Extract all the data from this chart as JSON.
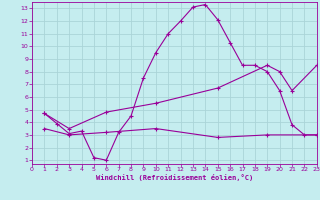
{
  "xlabel": "Windchill (Refroidissement éolien,°C)",
  "background_color": "#c5edef",
  "grid_color": "#aad4d8",
  "line_color": "#990099",
  "xlim": [
    0,
    23
  ],
  "ylim": [
    0.7,
    13.5
  ],
  "xticks": [
    0,
    1,
    2,
    3,
    4,
    5,
    6,
    7,
    8,
    9,
    10,
    11,
    12,
    13,
    14,
    15,
    16,
    17,
    18,
    19,
    20,
    21,
    22,
    23
  ],
  "yticks": [
    1,
    2,
    3,
    4,
    5,
    6,
    7,
    8,
    9,
    10,
    11,
    12,
    13
  ],
  "line1_x": [
    1,
    2,
    3,
    4,
    5,
    6,
    7,
    8,
    9,
    10,
    11,
    12,
    13,
    14,
    15,
    16,
    17,
    18,
    19,
    20,
    21,
    22,
    23
  ],
  "line1_y": [
    4.7,
    3.9,
    3.1,
    3.3,
    1.2,
    1.0,
    3.2,
    4.5,
    7.5,
    9.5,
    11.0,
    12.0,
    13.1,
    13.3,
    12.1,
    10.3,
    8.5,
    8.5,
    8.0,
    6.5,
    3.8,
    3.0,
    3.0
  ],
  "line2_x": [
    1,
    3,
    6,
    10,
    15,
    19,
    20,
    21,
    23
  ],
  "line2_y": [
    4.7,
    3.5,
    4.8,
    5.5,
    6.7,
    8.5,
    8.0,
    6.5,
    8.5
  ],
  "line3_x": [
    1,
    3,
    6,
    10,
    15,
    19,
    23
  ],
  "line3_y": [
    3.5,
    3.0,
    3.2,
    3.5,
    2.8,
    3.0,
    3.0
  ]
}
